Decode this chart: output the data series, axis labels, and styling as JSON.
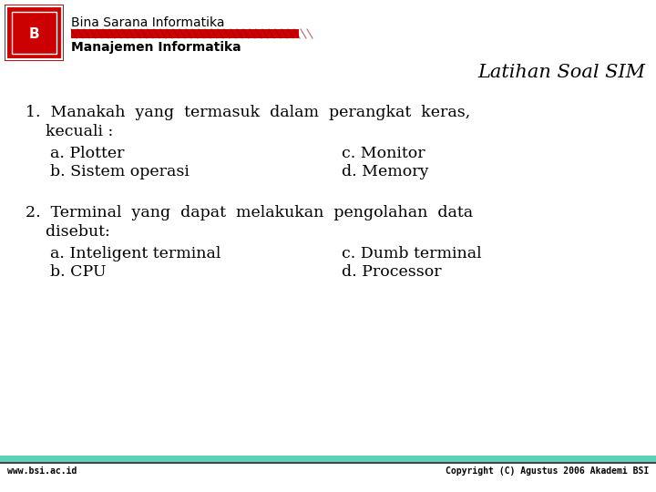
{
  "bg_color": "#ffffff",
  "title": "Latihan Soal SIM",
  "title_style": "italic",
  "title_fontsize": 15,
  "title_font": "serif",
  "header_org": "Bina Sarana Informatika",
  "header_sub": "Manajemen Informatika",
  "footer_left": "www.bsi.ac.id",
  "footer_right": "Copyright (C) Agustus 2006 Akademi BSI",
  "footer_bar_color": "#5ecfb8",
  "q1_line1": "1.  Manakah  yang  termasuk  dalam  perangkat  keras,",
  "q1_line2": "    kecuali :",
  "q1_a": "a. Plotter",
  "q1_c": "c. Monitor",
  "q1_b": "b. Sistem operasi",
  "q1_d": "d. Memory",
  "q2_line1": "2.  Terminal  yang  dapat  melakukan  pengolahan  data",
  "q2_line2": "    disebut:",
  "q2_a": "a. Inteligent terminal",
  "q2_c": "c. Dumb terminal",
  "q2_b": "b. CPU",
  "q2_d": "d. Processor",
  "text_color": "#000000",
  "body_fontsize": 12.5,
  "body_font": "serif",
  "red_color": "#cc0000",
  "dark_red": "#8b0000"
}
